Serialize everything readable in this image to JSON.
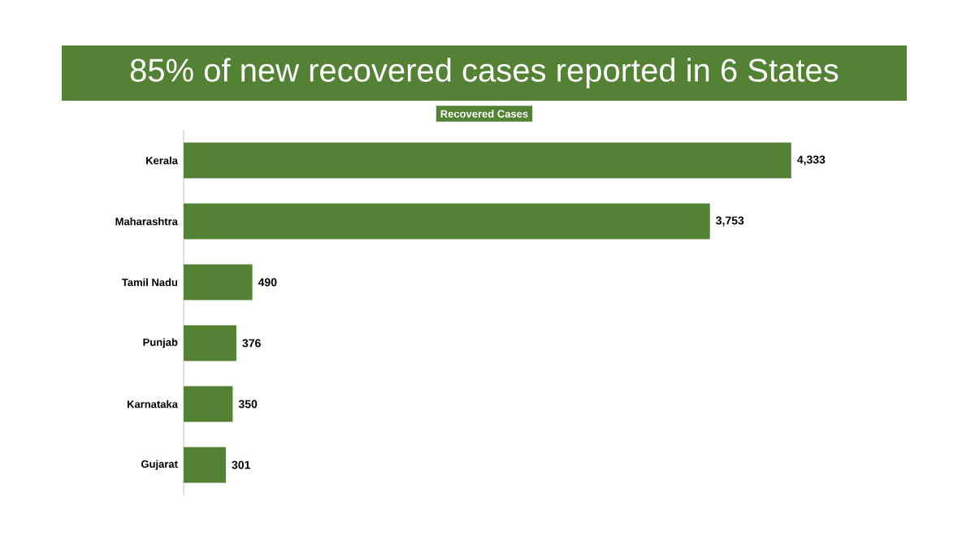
{
  "chart_data": {
    "type": "bar",
    "orientation": "horizontal",
    "title": "85% of new recovered cases reported in 6 States",
    "categories": [
      "Kerala",
      "Maharashtra",
      "Tamil Nadu",
      "Punjab",
      "Karnataka",
      "Gujarat"
    ],
    "series": [
      {
        "name": "Recovered Cases",
        "color": "#548235",
        "values": [
          4333,
          3753,
          490,
          376,
          350,
          301
        ],
        "value_labels": [
          "4,333",
          "3,753",
          "490",
          "376",
          "350",
          "301"
        ]
      }
    ],
    "legend": "top"
  }
}
